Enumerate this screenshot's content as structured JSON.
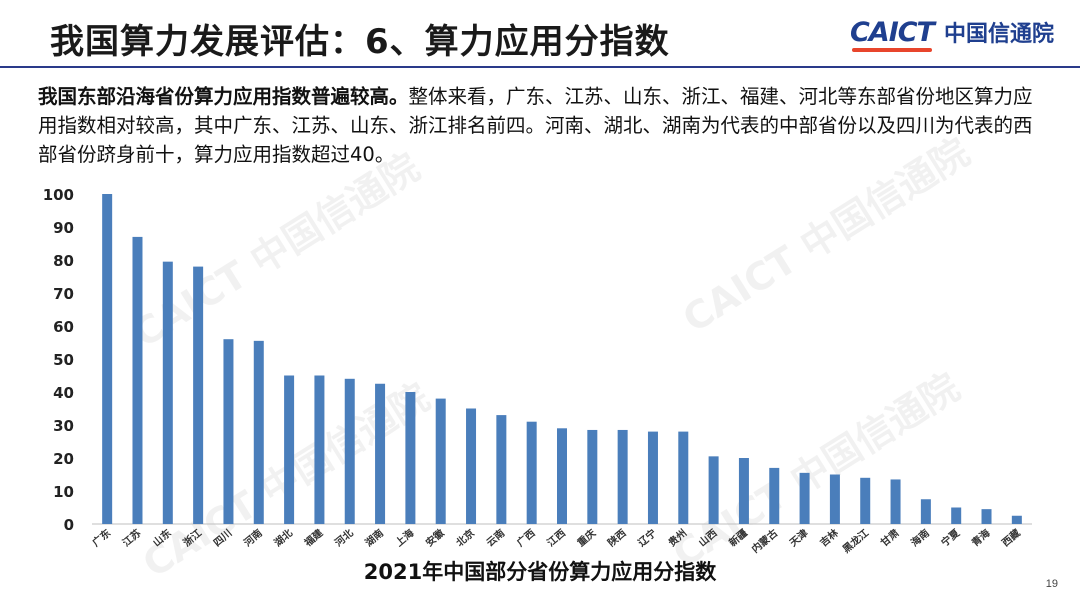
{
  "header": {
    "title": "我国算力发展评估：6、算力应用分指数",
    "logo_en": "CAICT",
    "logo_cn": "中国信通院"
  },
  "intro": {
    "bold": "我国东部沿海省份算力应用指数普遍较高。",
    "text": "整体来看，广东、江苏、山东、浙江、福建、河北等东部省份地区算力应用指数相对较高，其中广东、江苏、山东、浙江排名前四。河南、湖北、湖南为代表的中部省份以及四川为代表的西部省份跻身前十，算力应用指数超过40。"
  },
  "watermark": "CAICT 中国信通院",
  "page_number": "19",
  "colors": {
    "bar": "#4a7ebb",
    "axis": "#bfbfbf",
    "title_rule": "#2a3a8a"
  },
  "chart_data": {
    "type": "bar",
    "title": "2021年中国部分省份算力应用分指数",
    "xlabel": "",
    "ylabel": "",
    "ylim": [
      0,
      100
    ],
    "yticks": [
      0,
      10,
      20,
      30,
      40,
      50,
      60,
      70,
      80,
      90,
      100
    ],
    "grid": false,
    "categories": [
      "广东",
      "江苏",
      "山东",
      "浙江",
      "四川",
      "河南",
      "湖北",
      "福建",
      "河北",
      "湖南",
      "上海",
      "安徽",
      "北京",
      "云南",
      "广西",
      "江西",
      "重庆",
      "陕西",
      "辽宁",
      "贵州",
      "山西",
      "新疆",
      "内蒙古",
      "天津",
      "吉林",
      "黑龙江",
      "甘肃",
      "海南",
      "宁夏",
      "青海",
      "西藏"
    ],
    "values": [
      100,
      87,
      79.5,
      78,
      56,
      55.5,
      45,
      45,
      44,
      42.5,
      40,
      38,
      35,
      33,
      31,
      29,
      28.5,
      28.5,
      28,
      28,
      20.5,
      20,
      17,
      15.5,
      15,
      14,
      13.5,
      7.5,
      5,
      4.5,
      2.5
    ]
  }
}
